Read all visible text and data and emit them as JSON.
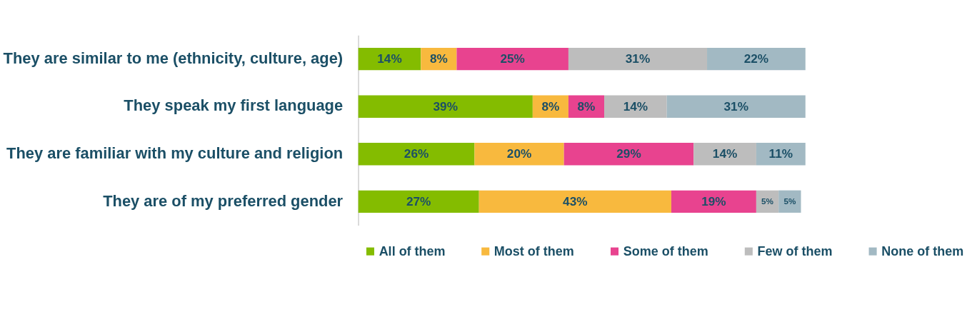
{
  "chart_data": {
    "type": "bar",
    "orientation": "horizontal",
    "stacked": true,
    "legend": "bottom",
    "tick_labels": "y",
    "categories": [
      "They are similar to me (ethnicity, culture, age)",
      "They speak my first language",
      "They are familiar with my culture and religion",
      "They are of my preferred gender"
    ],
    "series": [
      {
        "name": "All of them",
        "color": "#84bc00",
        "values": [
          14,
          39,
          26,
          27
        ],
        "value_labels": [
          "14%",
          "39%",
          "26%",
          "27%"
        ]
      },
      {
        "name": "Most of them",
        "color": "#f8b93e",
        "values": [
          8,
          8,
          20,
          43
        ],
        "value_labels": [
          "8%",
          "8%",
          "20%",
          "43%"
        ]
      },
      {
        "name": "Some of them",
        "color": "#e8438f",
        "values": [
          25,
          8,
          29,
          19
        ],
        "value_labels": [
          "25%",
          "8%",
          "29%",
          "19%"
        ]
      },
      {
        "name": "Few of them",
        "color": "#bdbdbd",
        "values": [
          31,
          14,
          14,
          5
        ],
        "value_labels": [
          "31%",
          "14%",
          "14%",
          "5%"
        ]
      },
      {
        "name": "None of them",
        "color": "#a2b9c3",
        "values": [
          22,
          31,
          11,
          5
        ],
        "value_labels": [
          "22%",
          "31%",
          "11%",
          "5%"
        ]
      }
    ]
  }
}
